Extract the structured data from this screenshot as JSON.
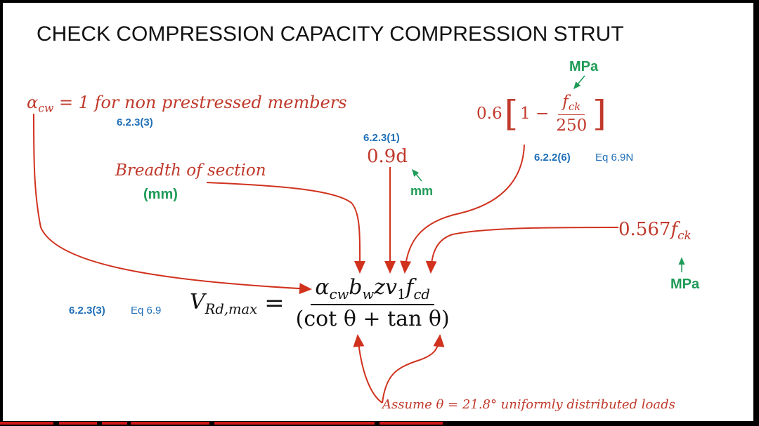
{
  "title": "CHECK COMPRESSION CAPACITY COMPRESSION STRUT",
  "alpha": {
    "symbol": "α",
    "sub": "cw",
    "rest": " = 1 for non prestressed members",
    "ref": "6.2.3(3)"
  },
  "breadth": {
    "label": "Breadth of section",
    "unit": "(mm)"
  },
  "z": {
    "ref": "6.2.3(1)",
    "value": "0.9d",
    "unit": "mm"
  },
  "v1": {
    "unit_top": "MPa",
    "coef": "0.6",
    "one_minus": "1 −",
    "num_sym": "f",
    "num_sub": "ck",
    "den": "250",
    "ref_bold": "6.2.2(6)",
    "ref_eq": "Eq 6.9N"
  },
  "fcd": {
    "value": "0.567",
    "sym": "f",
    "sub": "ck",
    "unit": "MPa"
  },
  "main_eq": {
    "ref_bold": "6.2.3(3)",
    "ref_eq": "Eq 6.9",
    "lhs_sym": "V",
    "lhs_sub": "Rd,max",
    "equals": "=",
    "num_alpha": "α",
    "num_alpha_sub": "cw",
    "num_b": "b",
    "num_b_sub": "w",
    "num_zv": "zv",
    "num_v_sub": "1",
    "num_f": "f",
    "num_f_sub": "cd",
    "denominator": "(cot θ + tan θ)"
  },
  "assume": "Assume  θ = 21.8°  uniformly distributed loads"
}
